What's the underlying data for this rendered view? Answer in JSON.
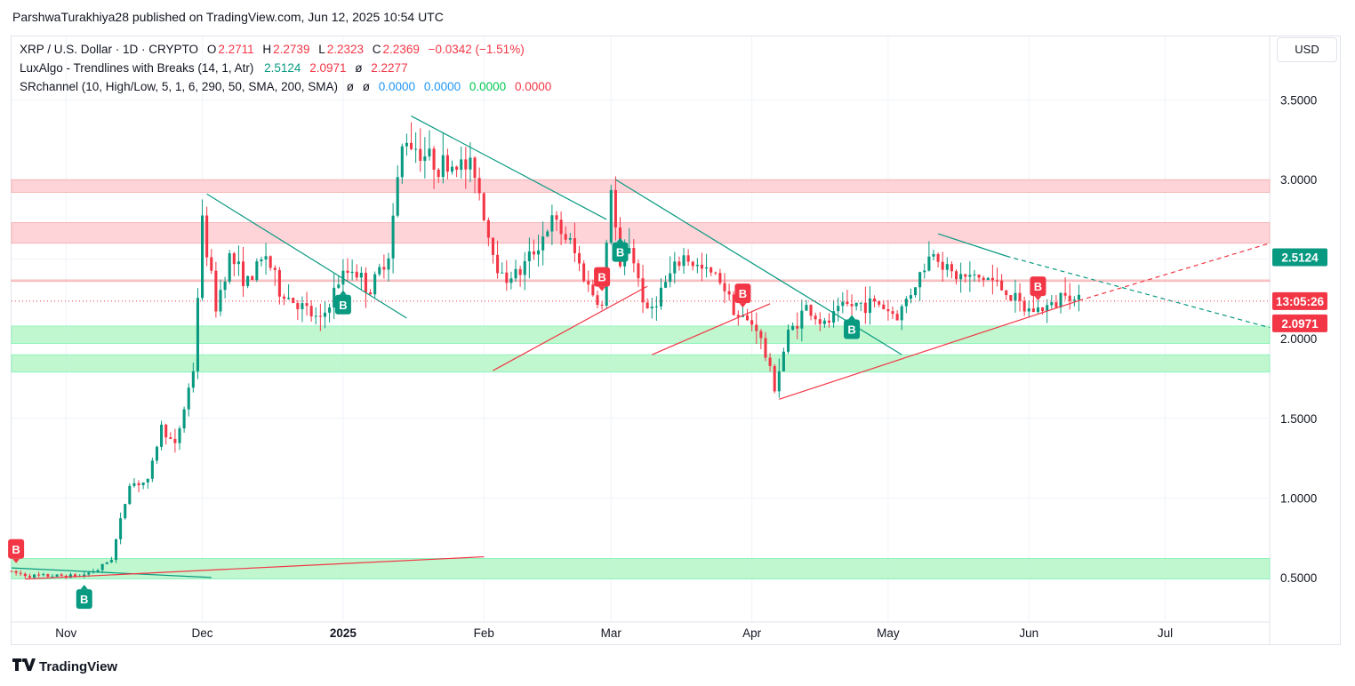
{
  "header": {
    "published_line": "ParshwaTurakhiya28 published on TradingView.com, Jun 12, 2025 10:54 UTC"
  },
  "legend": {
    "symbol": "XRP / U.S. Dollar · 1D · CRYPTO",
    "open_label": "O",
    "open": "2.2711",
    "high_label": "H",
    "high": "2.2739",
    "low_label": "L",
    "low": "2.2323",
    "close_label": "C",
    "close": "2.2369",
    "change": "−0.0342 (−1.51%)",
    "indicator1_name": "LuxAlgo - Trendlines with Breaks (14, 1, Atr)",
    "indicator1_v1": "2.5124",
    "indicator1_v2": "2.0971",
    "indicator1_sym": "ø",
    "indicator1_v3": "2.2277",
    "indicator2_name": "SRchannel (10, High/Low, 5, 1, 6, 290, 50, SMA, 200, SMA)",
    "indicator2_sym1": "ø",
    "indicator2_sym2": "ø",
    "indicator2_v1": "0.0000",
    "indicator2_v2": "0.0000",
    "indicator2_v3": "0.0000",
    "indicator2_v4": "0.0000"
  },
  "currency_button": "USD",
  "footer": {
    "brand": "TradingView"
  },
  "colors": {
    "up": "#089981",
    "down": "#f23645",
    "resistance_zone": "#ffcdd2",
    "support_zone": "#b9f6ca",
    "trend_down": "#089981",
    "trend_up": "#f23645"
  },
  "chart_data": {
    "type": "candlestick",
    "symbol": "XRP / U.S. Dollar",
    "interval": "1D",
    "ylim": [
      0.22,
      3.9
    ],
    "y_ticks": [
      "3.5000",
      "3.0000",
      "2.5000",
      "2.0000",
      "1.5000",
      "1.0000",
      "0.5000"
    ],
    "y_tick_values": [
      3.5,
      3.0,
      2.5,
      2.0,
      1.5,
      1.0,
      0.5
    ],
    "x_ticks": [
      "Nov",
      "Dec",
      "2025",
      "Feb",
      "Mar",
      "Apr",
      "May",
      "Jun",
      "Jul"
    ],
    "x_tick_dates": [
      "2024-11-01",
      "2024-12-01",
      "2025-01-01",
      "2025-02-01",
      "2025-03-01",
      "2025-04-01",
      "2025-05-01",
      "2025-06-01",
      "2025-07-01"
    ],
    "x_range": [
      "2024-10-20",
      "2025-07-24"
    ],
    "price_labels": [
      {
        "text": "2.5124",
        "value": 2.5124,
        "color": "#089981"
      },
      {
        "text": "13:05:26",
        "value": 2.2369,
        "color": "#f23645"
      },
      {
        "text": "2.0971",
        "value": 2.0971,
        "color": "#f23645"
      }
    ],
    "zones": [
      {
        "kind": "resistance",
        "from": 2.92,
        "to": 3.0
      },
      {
        "kind": "resistance",
        "from": 2.6,
        "to": 2.73
      },
      {
        "kind": "resistance",
        "from": 2.36,
        "to": 2.37
      },
      {
        "kind": "support",
        "from": 1.97,
        "to": 2.08
      },
      {
        "kind": "support",
        "from": 1.79,
        "to": 1.9
      },
      {
        "kind": "support",
        "from": 0.49,
        "to": 0.62
      }
    ],
    "trendlines": [
      {
        "kind": "down",
        "from": [
          "2024-10-20",
          0.56
        ],
        "to": [
          "2024-12-03",
          0.5
        ]
      },
      {
        "kind": "down",
        "from": [
          "2024-12-02",
          2.91
        ],
        "to": [
          "2025-01-15",
          2.13
        ]
      },
      {
        "kind": "down",
        "from": [
          "2025-01-16",
          3.4
        ],
        "to": [
          "2025-02-28",
          2.75
        ]
      },
      {
        "kind": "down",
        "from": [
          "2025-03-02",
          3.0
        ],
        "to": [
          "2025-05-04",
          1.9
        ]
      },
      {
        "kind": "down",
        "from": [
          "2025-05-12",
          2.66
        ],
        "to": [
          "2025-05-27",
          2.52
        ]
      },
      {
        "kind": "down_projection",
        "from": [
          "2025-05-27",
          2.52
        ],
        "to": [
          "2025-07-24",
          2.07
        ]
      },
      {
        "kind": "up",
        "from": [
          "2024-10-23",
          0.49
        ],
        "to": [
          "2025-02-01",
          0.63
        ]
      },
      {
        "kind": "up",
        "from": [
          "2025-02-03",
          1.8
        ],
        "to": [
          "2025-03-09",
          2.33
        ]
      },
      {
        "kind": "up",
        "from": [
          "2025-03-10",
          1.9
        ],
        "to": [
          "2025-04-05",
          2.22
        ]
      },
      {
        "kind": "up",
        "from": [
          "2025-04-07",
          1.62
        ],
        "to": [
          "2025-06-12",
          2.24
        ]
      },
      {
        "kind": "up_projection",
        "from": [
          "2025-06-12",
          2.24
        ],
        "to": [
          "2025-07-24",
          2.6
        ]
      }
    ],
    "markers": [
      {
        "label": "B",
        "date": "2024-10-21",
        "side": "sell"
      },
      {
        "label": "B",
        "date": "2024-11-05",
        "side": "buy"
      },
      {
        "label": "B",
        "date": "2025-01-01",
        "side": "buy"
      },
      {
        "label": "B",
        "date": "2025-02-27",
        "side": "sell"
      },
      {
        "label": "B",
        "date": "2025-03-03",
        "side": "buy"
      },
      {
        "label": "B",
        "date": "2025-03-30",
        "side": "sell"
      },
      {
        "label": "B",
        "date": "2025-04-23",
        "side": "buy"
      },
      {
        "label": "B",
        "date": "2025-06-03",
        "side": "sell"
      }
    ],
    "ohlc_path": [
      [
        "2024-10-20",
        0.54
      ],
      [
        "2024-10-25",
        0.51
      ],
      [
        "2024-11-01",
        0.51
      ],
      [
        "2024-11-05",
        0.51
      ],
      [
        "2024-11-09",
        0.55
      ],
      [
        "2024-11-12",
        0.62
      ],
      [
        "2024-11-16",
        1.09
      ],
      [
        "2024-11-20",
        1.1
      ],
      [
        "2024-11-23",
        1.45
      ],
      [
        "2024-11-26",
        1.32
      ],
      [
        "2024-11-30",
        1.81
      ],
      [
        "2024-12-02",
        2.73
      ],
      [
        "2024-12-05",
        2.2
      ],
      [
        "2024-12-08",
        2.52
      ],
      [
        "2024-12-12",
        2.35
      ],
      [
        "2024-12-16",
        2.53
      ],
      [
        "2024-12-19",
        2.3
      ],
      [
        "2024-12-23",
        2.22
      ],
      [
        "2024-12-28",
        2.1
      ],
      [
        "2025-01-01",
        2.36
      ],
      [
        "2025-01-04",
        2.45
      ],
      [
        "2025-01-08",
        2.3
      ],
      [
        "2025-01-12",
        2.55
      ],
      [
        "2025-01-15",
        3.2
      ],
      [
        "2025-01-16",
        3.26
      ],
      [
        "2025-01-19",
        3.18
      ],
      [
        "2025-01-23",
        3.09
      ],
      [
        "2025-01-27",
        3.1
      ],
      [
        "2025-01-31",
        3.06
      ],
      [
        "2025-02-03",
        2.65
      ],
      [
        "2025-02-06",
        2.38
      ],
      [
        "2025-02-10",
        2.42
      ],
      [
        "2025-02-14",
        2.6
      ],
      [
        "2025-02-17",
        2.74
      ],
      [
        "2025-02-21",
        2.6
      ],
      [
        "2025-02-25",
        2.33
      ],
      [
        "2025-02-28",
        2.2
      ],
      [
        "2025-03-02",
        2.96
      ],
      [
        "2025-03-04",
        2.42
      ],
      [
        "2025-03-06",
        2.6
      ],
      [
        "2025-03-10",
        2.15
      ],
      [
        "2025-03-14",
        2.35
      ],
      [
        "2025-03-18",
        2.52
      ],
      [
        "2025-03-22",
        2.43
      ],
      [
        "2025-03-26",
        2.38
      ],
      [
        "2025-03-30",
        2.14
      ],
      [
        "2025-04-03",
        2.08
      ],
      [
        "2025-04-07",
        1.7
      ],
      [
        "2025-04-10",
        2.03
      ],
      [
        "2025-04-14",
        2.2
      ],
      [
        "2025-04-18",
        2.08
      ],
      [
        "2025-04-22",
        2.2
      ],
      [
        "2025-04-26",
        2.22
      ],
      [
        "2025-04-30",
        2.22
      ],
      [
        "2025-05-04",
        2.14
      ],
      [
        "2025-05-08",
        2.35
      ],
      [
        "2025-05-12",
        2.56
      ],
      [
        "2025-05-16",
        2.4
      ],
      [
        "2025-05-20",
        2.38
      ],
      [
        "2025-05-24",
        2.38
      ],
      [
        "2025-05-28",
        2.3
      ],
      [
        "2025-06-01",
        2.18
      ],
      [
        "2025-06-05",
        2.19
      ],
      [
        "2025-06-08",
        2.22
      ],
      [
        "2025-06-10",
        2.33
      ],
      [
        "2025-06-12",
        2.2369
      ]
    ]
  }
}
